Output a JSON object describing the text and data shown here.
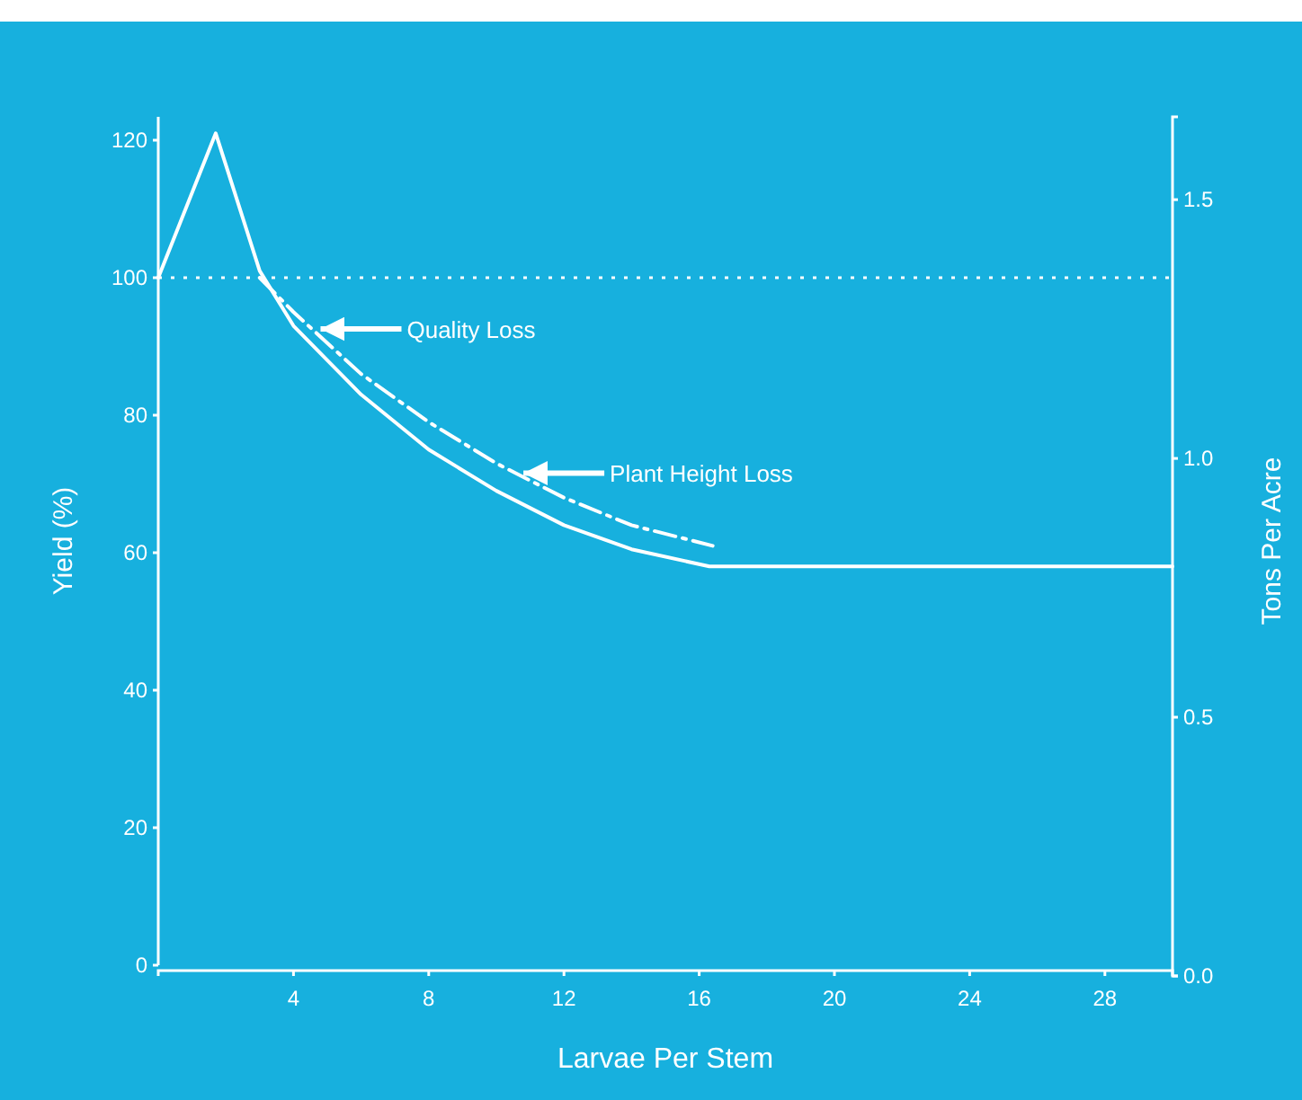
{
  "chart_data": {
    "type": "line",
    "xlabel": "Larvae Per Stem",
    "ylabel": "Yield (%)",
    "y2label": "Tons Per Acre",
    "xlim": [
      0,
      30
    ],
    "xticks": [
      4,
      8,
      12,
      16,
      20,
      24,
      28
    ],
    "ylim": [
      0,
      123.4
    ],
    "yticks": [
      0,
      20,
      40,
      60,
      80,
      100,
      120
    ],
    "y2lim": [
      0,
      1.66
    ],
    "y2ticks": [
      {
        "value": 0,
        "label": "0.0"
      },
      0.5,
      {
        "value": 1,
        "label": "1.0"
      },
      1.5
    ],
    "grid": false,
    "marker": "none",
    "series": [
      {
        "color": "#ffffff",
        "line_style": "solid",
        "x": [
          0,
          1.7,
          3,
          4,
          6,
          8,
          10,
          12,
          14,
          16.3,
          30
        ],
        "values": [
          100,
          121,
          101,
          93,
          83,
          75,
          69,
          64,
          60.5,
          58,
          58
        ]
      },
      {
        "color": "#ffffff",
        "line_style": "dashed",
        "x": [
          3,
          4,
          6,
          8,
          10,
          12,
          14,
          16.4
        ],
        "values": [
          100,
          95,
          86,
          79,
          73,
          68,
          64,
          61
        ]
      }
    ],
    "ref_lines": [
      {
        "axis": "y",
        "value": 100,
        "color": "#ffffff",
        "line_style": "dotted"
      }
    ],
    "annotations": [
      "Quality Loss",
      "Plant Height Loss"
    ]
  }
}
